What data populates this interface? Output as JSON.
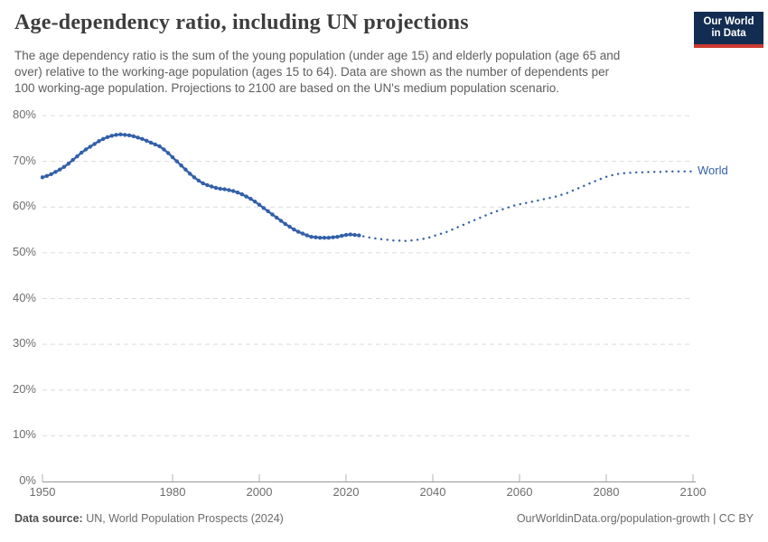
{
  "header": {
    "subtitle_lines": [
      "The age dependency ratio is the sum of the young population (under age 15) and elderly population (age 65 and",
      "over) relative to the working-age population (ages 15 to 64). Data are shown as the number of dependents per",
      "100 working-age population. Projections to 2100 are based on the UN's medium population scenario."
    ],
    "logo": {
      "line1": "Our World",
      "line2": "in Data",
      "bg_color": "#132d52",
      "bar_color": "#cb3a2f"
    }
  },
  "chart_data": {
    "type": "line",
    "title": "Age-dependency ratio, including UN projections",
    "xlabel": "",
    "ylabel": "",
    "xlim": [
      1950,
      2100
    ],
    "ylim": [
      0,
      80
    ],
    "grid": true,
    "legend_position": "right-end-of-line",
    "series_label": "World",
    "x_ticks": [
      {
        "value": 1950,
        "label": "1950"
      },
      {
        "value": 1980,
        "label": "1980"
      },
      {
        "value": 2000,
        "label": "2000"
      },
      {
        "value": 2020,
        "label": "2020"
      },
      {
        "value": 2040,
        "label": "2040"
      },
      {
        "value": 2060,
        "label": "2060"
      },
      {
        "value": 2080,
        "label": "2080"
      },
      {
        "value": 2100,
        "label": "2100"
      }
    ],
    "y_ticks": [
      {
        "value": 0,
        "label": "0%"
      },
      {
        "value": 10,
        "label": "10%"
      },
      {
        "value": 20,
        "label": "20%"
      },
      {
        "value": 30,
        "label": "30%"
      },
      {
        "value": 40,
        "label": "40%"
      },
      {
        "value": 50,
        "label": "50%"
      },
      {
        "value": 60,
        "label": "60%"
      },
      {
        "value": 70,
        "label": "70%"
      },
      {
        "value": 80,
        "label": "80%"
      }
    ],
    "colors": {
      "line": "#3360a9",
      "grid": "#dcdcdc",
      "axis": "#999999",
      "tick": "#b3b3b3",
      "tick_text": "#6e6e6e"
    },
    "series": [
      {
        "name": "World",
        "historical": {
          "start_year": 1950,
          "style": "solid-with-point-markers",
          "values": [
            66.5,
            66.8,
            67.2,
            67.7,
            68.2,
            68.8,
            69.5,
            70.3,
            71.1,
            71.9,
            72.6,
            73.2,
            73.8,
            74.4,
            74.9,
            75.3,
            75.6,
            75.8,
            75.9,
            75.8,
            75.7,
            75.5,
            75.2,
            74.9,
            74.5,
            74.1,
            73.7,
            73.3,
            72.6,
            71.8,
            70.9,
            70.0,
            69.1,
            68.2,
            67.3,
            66.5,
            65.8,
            65.2,
            64.8,
            64.5,
            64.2,
            64.0,
            63.9,
            63.7,
            63.5,
            63.2,
            62.8,
            62.3,
            61.8,
            61.2,
            60.5,
            59.8,
            59.1,
            58.4,
            57.7,
            57.0,
            56.3,
            55.7,
            55.1,
            54.6,
            54.2,
            53.8,
            53.5,
            53.4,
            53.3,
            53.3,
            53.3,
            53.4,
            53.5,
            53.7,
            53.9,
            54.0,
            53.9,
            53.8
          ]
        },
        "projection": {
          "start_year": 2024,
          "style": "dotted",
          "values": [
            53.6,
            53.4,
            53.3,
            53.1,
            53.0,
            52.9,
            52.8,
            52.7,
            52.7,
            52.6,
            52.6,
            52.7,
            52.8,
            52.9,
            53.1,
            53.3,
            53.6,
            53.9,
            54.2,
            54.5,
            54.9,
            55.3,
            55.7,
            56.1,
            56.5,
            56.9,
            57.3,
            57.7,
            58.1,
            58.5,
            58.8,
            59.2,
            59.5,
            59.8,
            60.1,
            60.4,
            60.6,
            60.8,
            61.0,
            61.2,
            61.4,
            61.6,
            61.8,
            62.0,
            62.2,
            62.5,
            62.8,
            63.1,
            63.5,
            63.9,
            64.3,
            64.7,
            65.1,
            65.5,
            65.9,
            66.3,
            66.6,
            66.9,
            67.1,
            67.3,
            67.4,
            67.5,
            67.5,
            67.6,
            67.6,
            67.6,
            67.7,
            67.7,
            67.7,
            67.7,
            67.8,
            67.8,
            67.8,
            67.8,
            67.8,
            67.8,
            67.8
          ]
        }
      }
    ]
  },
  "footer": {
    "source_label": "Data source:",
    "source_text": " UN, World Population Prospects (2024)",
    "link_text": "OurWorldinData.org/population-growth",
    "license_text": " | CC BY"
  }
}
